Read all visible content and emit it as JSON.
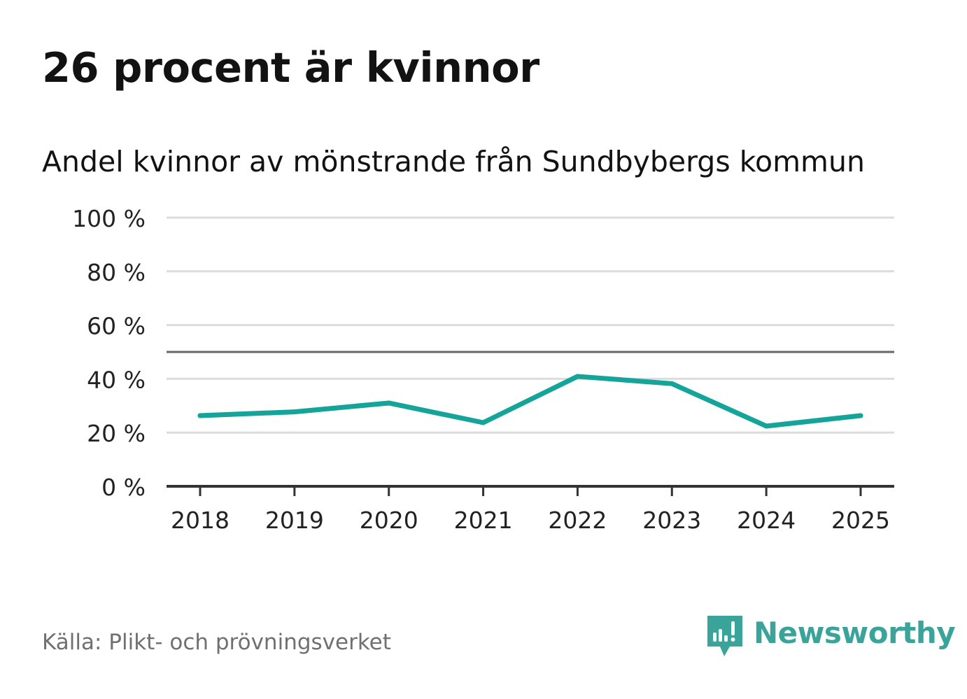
{
  "header": {
    "title": "26 procent är kvinnor",
    "subtitle": "Andel kvinnor av mönstrande från Sundbybergs kommun"
  },
  "footer": {
    "source": "Källa: Plikt- och prövningsverket",
    "brand": "Newsworthy"
  },
  "colors": {
    "line": "#14a49a",
    "grid": "#dcdcdc",
    "axis": "#333333",
    "reference": "#666666",
    "brand": "#3aa39a"
  },
  "chart_data": {
    "type": "line",
    "title": "26 procent är kvinnor",
    "subtitle": "Andel kvinnor av mönstrande från Sundbybergs kommun",
    "xlabel": "",
    "ylabel": "",
    "categories": [
      "2018",
      "2019",
      "2020",
      "2021",
      "2022",
      "2023",
      "2024",
      "2025"
    ],
    "series": [
      {
        "name": "Andel kvinnor",
        "values": [
          26.3,
          27.7,
          31.0,
          23.7,
          40.9,
          38.2,
          22.4,
          26.3
        ]
      }
    ],
    "ylim": [
      0,
      100
    ],
    "yticks": [
      0,
      20,
      40,
      60,
      80,
      100
    ],
    "ytick_labels": [
      "0 %",
      "20 %",
      "40 %",
      "60 %",
      "80 %",
      "100 %"
    ],
    "reference_line": 50,
    "grid": true,
    "legend": "none"
  }
}
